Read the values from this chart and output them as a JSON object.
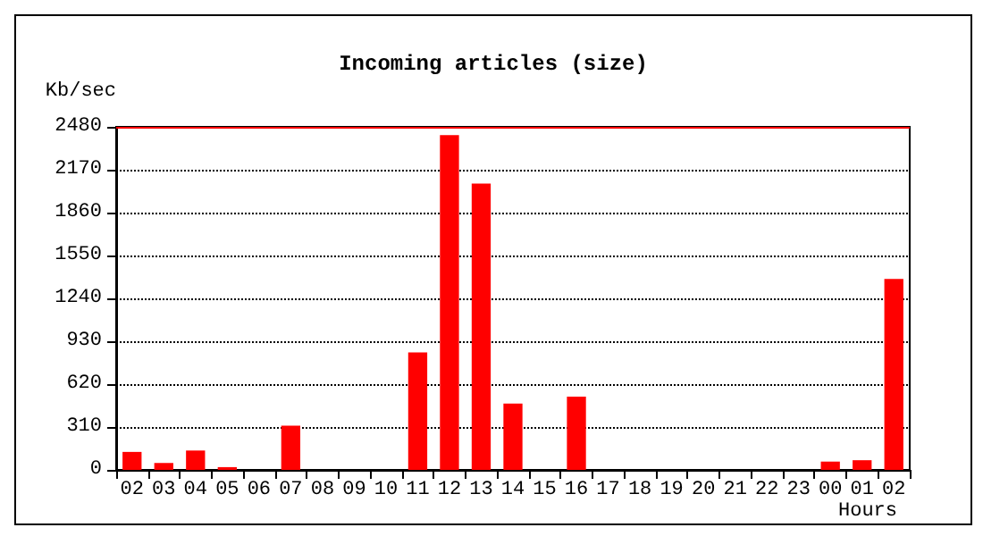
{
  "chart_data": {
    "type": "bar",
    "title": "Incoming articles (size)",
    "ylabel": "Kb/sec",
    "xlabel": "Hours",
    "categories": [
      "02",
      "03",
      "04",
      "05",
      "06",
      "07",
      "08",
      "09",
      "10",
      "11",
      "12",
      "13",
      "14",
      "15",
      "16",
      "17",
      "18",
      "19",
      "20",
      "21",
      "22",
      "23",
      "00",
      "01",
      "02"
    ],
    "values": [
      130,
      50,
      140,
      20,
      0,
      320,
      0,
      0,
      0,
      850,
      2420,
      2070,
      480,
      0,
      530,
      0,
      0,
      0,
      0,
      0,
      0,
      0,
      60,
      70,
      1380
    ],
    "color": "#ff0000",
    "ylim": [
      0,
      2480
    ],
    "yticks": [
      0,
      310,
      620,
      930,
      1240,
      1550,
      1860,
      2170,
      2480
    ],
    "ref_lines": [
      {
        "axis": "y",
        "value": 2480,
        "color": "#ff0000"
      }
    ],
    "grid": "y",
    "line_style": "dotted"
  }
}
